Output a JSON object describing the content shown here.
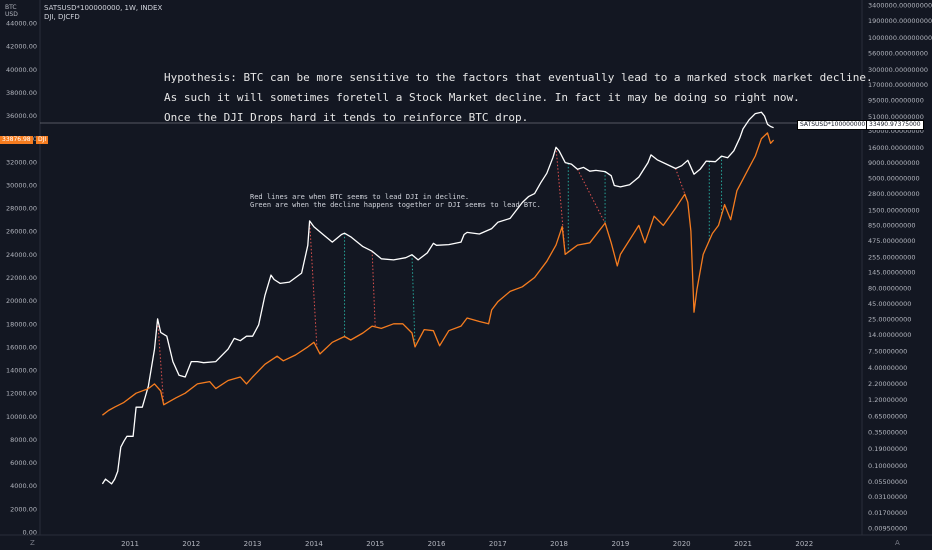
{
  "header": {
    "symbol_line": "SATSUSD*100000000, 1W, INDEX",
    "overlay_line": "DJI, DJCFD",
    "left_unit": [
      "BTC",
      "USD"
    ]
  },
  "annotations": {
    "hypothesis": [
      "Hypothesis: BTC can be more sensitive to the factors that eventually lead to a marked stock market decline.",
      "As such it will sometimes foretell a Stock Market decline. In fact it may be doing so right now.",
      "Once the DJI Drops hard it tends to reinforce BTC drop."
    ],
    "legend_note": [
      "Red lines are when BTC seems to lead DJI in decline.",
      "Green are when the decline happens together or DJI seems to lead BTC."
    ]
  },
  "tags": {
    "dji_value": "33876.98",
    "dji_label": "DJI",
    "sats_label": "SATSUSD*100000000",
    "sats_value": "33490.97375000"
  },
  "colors": {
    "background": "#131722",
    "btc_line": "#ffffff",
    "dji_line": "#f57c1f",
    "red_marker": "#e0524f",
    "green_marker": "#26a69a"
  },
  "chart_data": {
    "type": "line",
    "x_ticks": [
      "2011",
      "2012",
      "2013",
      "2014",
      "2015",
      "2016",
      "2017",
      "2018",
      "2019",
      "2020",
      "2021",
      "2022"
    ],
    "left_axis": {
      "scale": "linear",
      "ticks": [
        "0.00",
        "2000.00",
        "4000.00",
        "6000.00",
        "8000.00",
        "10000.00",
        "12000.00",
        "14000.00",
        "16000.00",
        "18000.00",
        "20000.00",
        "22000.00",
        "24000.00",
        "26000.00",
        "28000.00",
        "30000.00",
        "32000.00",
        "34000.00",
        "36000.00",
        "38000.00",
        "40000.00",
        "42000.00",
        "44000.00"
      ],
      "range": [
        0,
        46000
      ]
    },
    "right_axis": {
      "scale": "log",
      "ticks": [
        "0.00950000",
        "0.01700000",
        "0.03100000",
        "0.05500000",
        "0.10000000",
        "0.19000000",
        "0.35000000",
        "0.65000000",
        "1.20000000",
        "2.20000000",
        "4.00000000",
        "7.50000000",
        "14.00000000",
        "25.00000000",
        "45.00000000",
        "80.00000000",
        "145.00000000",
        "255.00000000",
        "475.00000000",
        "850.00000000",
        "1500.00000000",
        "2800.00000000",
        "5000.00000000",
        "9000.00000000",
        "16000.00000000",
        "30000.00000000",
        "51000.00000000",
        "95000.00000000",
        "170000.00000000",
        "300000.00000000",
        "560000.00000000",
        "1000000.00000000",
        "1900000.00000000",
        "3400000.00000000"
      ]
    },
    "series": [
      {
        "name": "SATSUSD*100000000",
        "axis": "right",
        "color": "#ffffff",
        "points": [
          [
            2010.55,
            0.05
          ],
          [
            2010.6,
            0.06
          ],
          [
            2010.7,
            0.05
          ],
          [
            2010.75,
            0.06
          ],
          [
            2010.8,
            0.08
          ],
          [
            2010.85,
            0.2
          ],
          [
            2010.9,
            0.25
          ],
          [
            2010.95,
            0.3
          ],
          [
            2011.05,
            0.3
          ],
          [
            2011.1,
            0.9
          ],
          [
            2011.2,
            0.9
          ],
          [
            2011.3,
            2
          ],
          [
            2011.4,
            8
          ],
          [
            2011.45,
            25
          ],
          [
            2011.5,
            15
          ],
          [
            2011.6,
            13
          ],
          [
            2011.7,
            5
          ],
          [
            2011.8,
            3
          ],
          [
            2011.9,
            2.8
          ],
          [
            2012.0,
            5
          ],
          [
            2012.1,
            5
          ],
          [
            2012.2,
            4.8
          ],
          [
            2012.4,
            5
          ],
          [
            2012.6,
            8
          ],
          [
            2012.7,
            12
          ],
          [
            2012.8,
            11
          ],
          [
            2012.9,
            13
          ],
          [
            2013.0,
            13
          ],
          [
            2013.1,
            20
          ],
          [
            2013.2,
            60
          ],
          [
            2013.3,
            130
          ],
          [
            2013.35,
            110
          ],
          [
            2013.45,
            95
          ],
          [
            2013.6,
            100
          ],
          [
            2013.8,
            140
          ],
          [
            2013.9,
            400
          ],
          [
            2013.93,
            1000
          ],
          [
            2014.0,
            800
          ],
          [
            2014.15,
            600
          ],
          [
            2014.3,
            450
          ],
          [
            2014.45,
            600
          ],
          [
            2014.5,
            630
          ],
          [
            2014.6,
            550
          ],
          [
            2014.8,
            380
          ],
          [
            2014.95,
            320
          ],
          [
            2015.1,
            240
          ],
          [
            2015.3,
            230
          ],
          [
            2015.5,
            250
          ],
          [
            2015.6,
            280
          ],
          [
            2015.7,
            230
          ],
          [
            2015.85,
            300
          ],
          [
            2015.95,
            430
          ],
          [
            2016.0,
            400
          ],
          [
            2016.2,
            410
          ],
          [
            2016.4,
            450
          ],
          [
            2016.45,
            600
          ],
          [
            2016.5,
            650
          ],
          [
            2016.7,
            610
          ],
          [
            2016.9,
            750
          ],
          [
            2017.0,
            950
          ],
          [
            2017.2,
            1100
          ],
          [
            2017.4,
            2000
          ],
          [
            2017.5,
            2500
          ],
          [
            2017.6,
            2800
          ],
          [
            2017.7,
            4200
          ],
          [
            2017.8,
            6000
          ],
          [
            2017.9,
            11000
          ],
          [
            2017.95,
            16000
          ],
          [
            2018.0,
            14000
          ],
          [
            2018.1,
            9000
          ],
          [
            2018.2,
            8500
          ],
          [
            2018.3,
            7000
          ],
          [
            2018.4,
            7500
          ],
          [
            2018.5,
            6500
          ],
          [
            2018.6,
            6700
          ],
          [
            2018.75,
            6400
          ],
          [
            2018.85,
            5500
          ],
          [
            2018.9,
            3800
          ],
          [
            2019.0,
            3600
          ],
          [
            2019.15,
            3900
          ],
          [
            2019.3,
            5200
          ],
          [
            2019.45,
            9000
          ],
          [
            2019.5,
            12000
          ],
          [
            2019.6,
            10000
          ],
          [
            2019.75,
            8500
          ],
          [
            2019.9,
            7200
          ],
          [
            2020.0,
            8000
          ],
          [
            2020.1,
            9800
          ],
          [
            2020.2,
            5800
          ],
          [
            2020.3,
            7000
          ],
          [
            2020.4,
            9500
          ],
          [
            2020.55,
            9300
          ],
          [
            2020.65,
            11500
          ],
          [
            2020.75,
            10800
          ],
          [
            2020.85,
            14000
          ],
          [
            2020.95,
            23000
          ],
          [
            2021.0,
            32000
          ],
          [
            2021.1,
            45000
          ],
          [
            2021.2,
            57000
          ],
          [
            2021.3,
            60000
          ],
          [
            2021.35,
            52000
          ],
          [
            2021.4,
            38000
          ],
          [
            2021.45,
            35000
          ],
          [
            2021.5,
            33490
          ]
        ]
      },
      {
        "name": "DJI",
        "axis": "left",
        "color": "#f57c1f",
        "points": [
          [
            2010.55,
            10100
          ],
          [
            2010.65,
            10500
          ],
          [
            2010.75,
            10800
          ],
          [
            2010.9,
            11200
          ],
          [
            2011.1,
            12000
          ],
          [
            2011.3,
            12400
          ],
          [
            2011.4,
            12800
          ],
          [
            2011.5,
            12200
          ],
          [
            2011.55,
            11000
          ],
          [
            2011.65,
            11300
          ],
          [
            2011.75,
            11600
          ],
          [
            2011.9,
            12000
          ],
          [
            2012.1,
            12800
          ],
          [
            2012.3,
            13000
          ],
          [
            2012.4,
            12400
          ],
          [
            2012.6,
            13100
          ],
          [
            2012.8,
            13400
          ],
          [
            2012.9,
            12800
          ],
          [
            2013.0,
            13400
          ],
          [
            2013.2,
            14500
          ],
          [
            2013.4,
            15200
          ],
          [
            2013.5,
            14800
          ],
          [
            2013.7,
            15300
          ],
          [
            2013.9,
            16000
          ],
          [
            2014.0,
            16400
          ],
          [
            2014.1,
            15400
          ],
          [
            2014.3,
            16400
          ],
          [
            2014.5,
            16900
          ],
          [
            2014.6,
            16600
          ],
          [
            2014.8,
            17200
          ],
          [
            2014.95,
            17800
          ],
          [
            2015.1,
            17600
          ],
          [
            2015.3,
            18000
          ],
          [
            2015.45,
            18000
          ],
          [
            2015.6,
            17200
          ],
          [
            2015.65,
            16000
          ],
          [
            2015.8,
            17500
          ],
          [
            2015.95,
            17400
          ],
          [
            2016.05,
            16100
          ],
          [
            2016.2,
            17400
          ],
          [
            2016.4,
            17800
          ],
          [
            2016.5,
            18500
          ],
          [
            2016.7,
            18200
          ],
          [
            2016.85,
            18000
          ],
          [
            2016.9,
            19200
          ],
          [
            2017.0,
            19900
          ],
          [
            2017.2,
            20800
          ],
          [
            2017.4,
            21200
          ],
          [
            2017.6,
            22000
          ],
          [
            2017.8,
            23400
          ],
          [
            2017.95,
            24800
          ],
          [
            2018.05,
            26400
          ],
          [
            2018.1,
            24000
          ],
          [
            2018.2,
            24400
          ],
          [
            2018.3,
            24800
          ],
          [
            2018.5,
            25000
          ],
          [
            2018.75,
            26700
          ],
          [
            2018.85,
            25000
          ],
          [
            2018.95,
            23000
          ],
          [
            2019.0,
            24000
          ],
          [
            2019.3,
            26500
          ],
          [
            2019.4,
            25000
          ],
          [
            2019.55,
            27300
          ],
          [
            2019.7,
            26500
          ],
          [
            2019.9,
            28000
          ],
          [
            2020.05,
            29200
          ],
          [
            2020.1,
            28500
          ],
          [
            2020.15,
            26000
          ],
          [
            2020.2,
            19000
          ],
          [
            2020.25,
            21000
          ],
          [
            2020.35,
            24000
          ],
          [
            2020.5,
            25800
          ],
          [
            2020.6,
            26500
          ],
          [
            2020.7,
            28300
          ],
          [
            2020.8,
            27000
          ],
          [
            2020.9,
            29500
          ],
          [
            2021.0,
            30500
          ],
          [
            2021.1,
            31500
          ],
          [
            2021.2,
            32500
          ],
          [
            2021.3,
            34000
          ],
          [
            2021.4,
            34500
          ],
          [
            2021.45,
            33600
          ],
          [
            2021.5,
            33877
          ]
        ]
      }
    ],
    "markers": [
      {
        "color": "red",
        "from": [
          2011.45,
          "sats"
        ],
        "to": [
          2011.55,
          "dji"
        ]
      },
      {
        "color": "red",
        "from": [
          2013.93,
          "sats"
        ],
        "to": [
          2014.05,
          "dji"
        ]
      },
      {
        "color": "green",
        "from": [
          2014.5,
          "sats"
        ],
        "to": [
          2014.5,
          "dji"
        ]
      },
      {
        "color": "red",
        "from": [
          2014.95,
          "sats"
        ],
        "to": [
          2015.0,
          "dji"
        ]
      },
      {
        "color": "green",
        "from": [
          2015.6,
          "sats"
        ],
        "to": [
          2015.65,
          "dji"
        ]
      },
      {
        "color": "red",
        "from": [
          2017.95,
          "sats"
        ],
        "to": [
          2018.1,
          "dji"
        ]
      },
      {
        "color": "green",
        "from": [
          2018.15,
          "sats"
        ],
        "to": [
          2018.15,
          "dji"
        ]
      },
      {
        "color": "red",
        "from": [
          2018.3,
          "sats"
        ],
        "to": [
          2018.75,
          "dji"
        ]
      },
      {
        "color": "green",
        "from": [
          2018.75,
          "sats"
        ],
        "to": [
          2018.75,
          "dji"
        ]
      },
      {
        "color": "red",
        "from": [
          2019.9,
          "sats"
        ],
        "to": [
          2020.1,
          "dji"
        ]
      },
      {
        "color": "green",
        "from": [
          2020.45,
          "sats"
        ],
        "to": [
          2020.45,
          "dji"
        ]
      },
      {
        "color": "green",
        "from": [
          2020.65,
          "sats"
        ],
        "to": [
          2020.65,
          "dji"
        ]
      }
    ]
  }
}
